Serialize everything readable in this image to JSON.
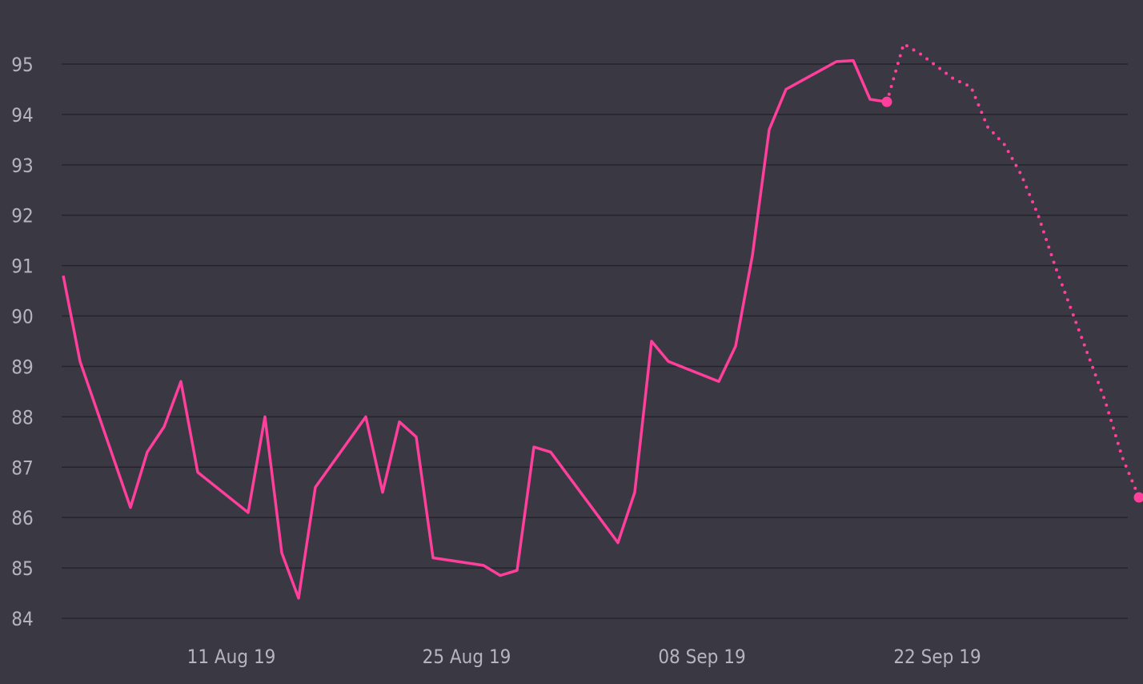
{
  "chart_data": {
    "type": "line",
    "title": "",
    "xlabel": "",
    "ylabel": "",
    "ylim": [
      84,
      95
    ],
    "y_ticks": [
      84,
      85,
      86,
      87,
      88,
      89,
      90,
      91,
      92,
      93,
      94,
      95
    ],
    "x_ticks": [
      {
        "label": "11 Aug 19",
        "date": "2019-08-11"
      },
      {
        "label": "25 Aug 19",
        "date": "2019-08-25"
      },
      {
        "label": "08 Sep 19",
        "date": "2019-09-08"
      },
      {
        "label": "22 Sep 19",
        "date": "2019-09-22"
      }
    ],
    "grid": true,
    "legend": "none",
    "series": [
      {
        "style": "solid",
        "marker_at_end": true,
        "points": [
          {
            "date": "2019-08-01",
            "value": 90.8
          },
          {
            "date": "2019-08-02",
            "value": 89.1
          },
          {
            "date": "2019-08-05",
            "value": 86.2
          },
          {
            "date": "2019-08-06",
            "value": 87.3
          },
          {
            "date": "2019-08-07",
            "value": 87.8
          },
          {
            "date": "2019-08-08",
            "value": 88.7
          },
          {
            "date": "2019-08-09",
            "value": 86.9
          },
          {
            "date": "2019-08-12",
            "value": 86.1
          },
          {
            "date": "2019-08-13",
            "value": 88.0
          },
          {
            "date": "2019-08-14",
            "value": 85.3
          },
          {
            "date": "2019-08-15",
            "value": 84.4
          },
          {
            "date": "2019-08-16",
            "value": 86.6
          },
          {
            "date": "2019-08-19",
            "value": 88.0
          },
          {
            "date": "2019-08-20",
            "value": 86.5
          },
          {
            "date": "2019-08-21",
            "value": 87.9
          },
          {
            "date": "2019-08-22",
            "value": 87.6
          },
          {
            "date": "2019-08-23",
            "value": 85.2
          },
          {
            "date": "2019-08-26",
            "value": 85.05
          },
          {
            "date": "2019-08-27",
            "value": 84.85
          },
          {
            "date": "2019-08-28",
            "value": 84.95
          },
          {
            "date": "2019-08-29",
            "value": 87.4
          },
          {
            "date": "2019-08-30",
            "value": 87.3
          },
          {
            "date": "2019-09-03",
            "value": 85.5
          },
          {
            "date": "2019-09-04",
            "value": 86.5
          },
          {
            "date": "2019-09-05",
            "value": 89.5
          },
          {
            "date": "2019-09-06",
            "value": 89.1
          },
          {
            "date": "2019-09-09",
            "value": 88.7
          },
          {
            "date": "2019-09-10",
            "value": 89.4
          },
          {
            "date": "2019-09-11",
            "value": 91.2
          },
          {
            "date": "2019-09-12",
            "value": 93.7
          },
          {
            "date": "2019-09-13",
            "value": 94.5
          },
          {
            "date": "2019-09-16",
            "value": 95.05
          },
          {
            "date": "2019-09-17",
            "value": 95.07
          },
          {
            "date": "2019-09-18",
            "value": 94.3
          },
          {
            "date": "2019-09-19",
            "value": 94.25
          }
        ]
      },
      {
        "style": "dotted",
        "marker_at_end": true,
        "points": [
          {
            "date": "2019-09-19",
            "value": 94.25
          },
          {
            "date": "2019-09-20",
            "value": 95.4
          },
          {
            "date": "2019-09-21",
            "value": 95.2
          },
          {
            "date": "2019-09-22",
            "value": 94.95
          },
          {
            "date": "2019-09-23",
            "value": 94.7
          },
          {
            "date": "2019-09-24",
            "value": 94.55
          },
          {
            "date": "2019-09-25",
            "value": 93.75
          },
          {
            "date": "2019-09-26",
            "value": 93.4
          },
          {
            "date": "2019-09-27",
            "value": 92.8
          },
          {
            "date": "2019-09-28",
            "value": 92.0
          },
          {
            "date": "2019-09-29",
            "value": 91.0
          },
          {
            "date": "2019-09-30",
            "value": 90.1
          },
          {
            "date": "2019-10-01",
            "value": 89.2
          },
          {
            "date": "2019-10-02",
            "value": 88.3
          },
          {
            "date": "2019-10-03",
            "value": 87.2
          },
          {
            "date": "2019-10-04",
            "value": 86.4
          }
        ]
      }
    ],
    "colors": {
      "background": "#393843",
      "line": "#ff3f9b",
      "grid": "#25242c",
      "tick_text": "#b6b5bd"
    }
  }
}
